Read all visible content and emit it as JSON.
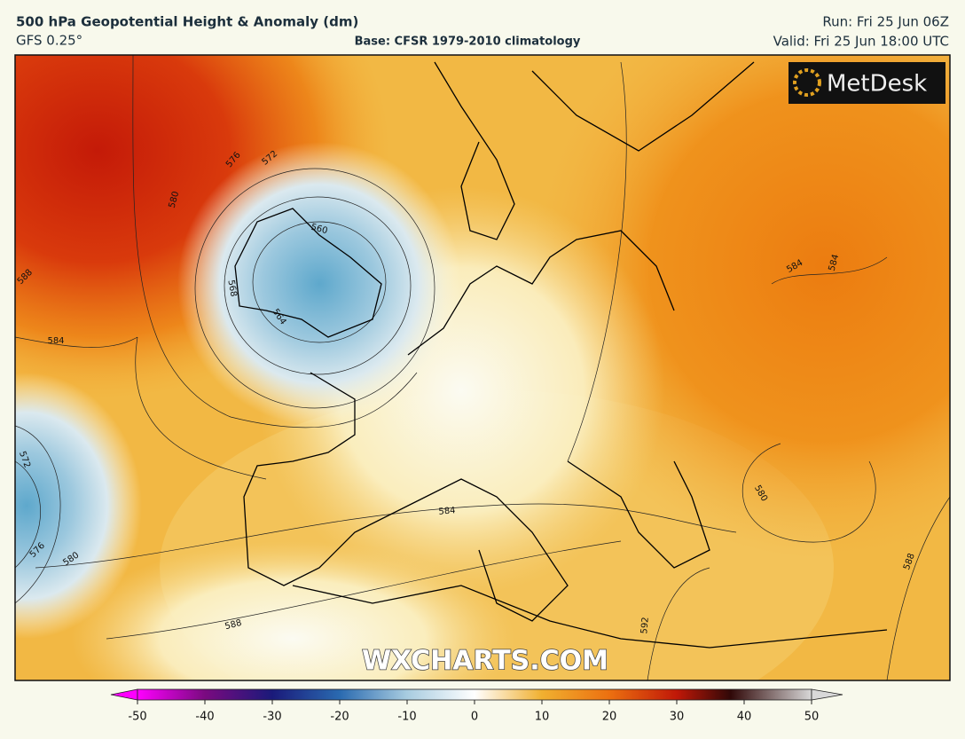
{
  "header": {
    "title": "500 hPa Geopotential Height & Anomaly (dm)",
    "model": "GFS 0.25°",
    "base": "Base: CFSR 1979-2010 climatology",
    "run": "Run: Fri 25 Jun 06Z",
    "valid": "Valid: Fri 25 Jun 18:00 UTC"
  },
  "map": {
    "logo": "MetDesk",
    "watermark": "WXCHARTS.COM",
    "contour_labels": [
      576,
      572,
      580,
      588,
      584,
      560,
      564,
      568,
      584,
      584,
      572,
      576,
      580,
      584,
      588,
      592,
      580,
      588
    ]
  },
  "colorbar": {
    "range": [
      -50,
      50
    ],
    "ticks": [
      -50,
      -40,
      -30,
      -20,
      -10,
      0,
      10,
      20,
      30,
      40,
      50
    ]
  }
}
